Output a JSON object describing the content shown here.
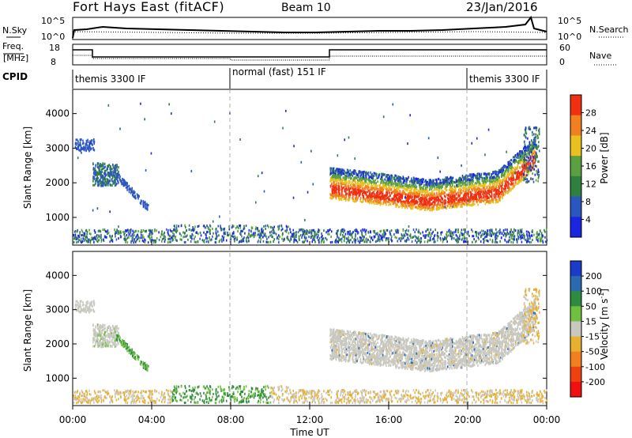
{
  "header": {
    "radar": "Fort Hays East (fitACF)",
    "beam": "Beam 10",
    "date": "23/Jan/2016"
  },
  "panels": {
    "nsky": {
      "left_label": "N.Sky",
      "right_label": "N.Search",
      "left_ticks": [
        "10^5",
        "10^0"
      ],
      "right_ticks": [
        "10^5",
        "10^0"
      ]
    },
    "freq": {
      "left_label_1": "Freq.",
      "left_label_2": "[MHz]",
      "right_label": "Nave",
      "left_ticks": [
        "18",
        "8"
      ],
      "right_ticks": [
        "60",
        "0"
      ]
    },
    "cpid": {
      "label": "CPID",
      "segments": [
        "themis 3300 IF",
        "normal (fast) 151 IF",
        "themis 3300 IF"
      ]
    }
  },
  "chart_data": [
    {
      "type": "heatmap",
      "name": "power",
      "ylabel": "Slant Range [km]",
      "xlabel": "Time UT",
      "x_ticks": [
        "00:00",
        "04:00",
        "08:00",
        "12:00",
        "16:00",
        "20:00",
        "00:00"
      ],
      "y_ticks": [
        1000,
        2000,
        3000,
        4000
      ],
      "ylim": [
        200,
        4700
      ],
      "colorbar_label": "Power [dB]",
      "colorbar_ticks": [
        4,
        8,
        12,
        16,
        20,
        24,
        28
      ],
      "colorbar_range": [
        0,
        32
      ],
      "colors": [
        "#1a25e0",
        "#2a56c0",
        "#2e8040",
        "#5aa040",
        "#e8c020",
        "#f08020",
        "#f03010"
      ]
    },
    {
      "type": "heatmap",
      "name": "velocity",
      "ylabel": "Slant Range [km]",
      "xlabel": "Time UT",
      "x_ticks": [
        "00:00",
        "04:00",
        "08:00",
        "12:00",
        "16:00",
        "20:00",
        "00:00"
      ],
      "y_ticks": [
        1000,
        2000,
        3000,
        4000
      ],
      "ylim": [
        200,
        4700
      ],
      "colorbar_label": "Velocity [m s",
      "colorbar_label_sup": "-1",
      "colorbar_label_end": "]",
      "colorbar_ticks": [
        "200",
        "100",
        "50",
        "15",
        "-15",
        "-50",
        "-100",
        "-200"
      ],
      "colors": [
        "#1a3cc8",
        "#2a6ab0",
        "#2e8c40",
        "#70c040",
        "#c8c8c0",
        "#e8b030",
        "#f08020",
        "#f04010",
        "#f01010"
      ]
    }
  ],
  "time_axis": {
    "start_hour": 0,
    "end_hour": 24,
    "dashed_lines": [
      "08:00",
      "20:00"
    ]
  }
}
